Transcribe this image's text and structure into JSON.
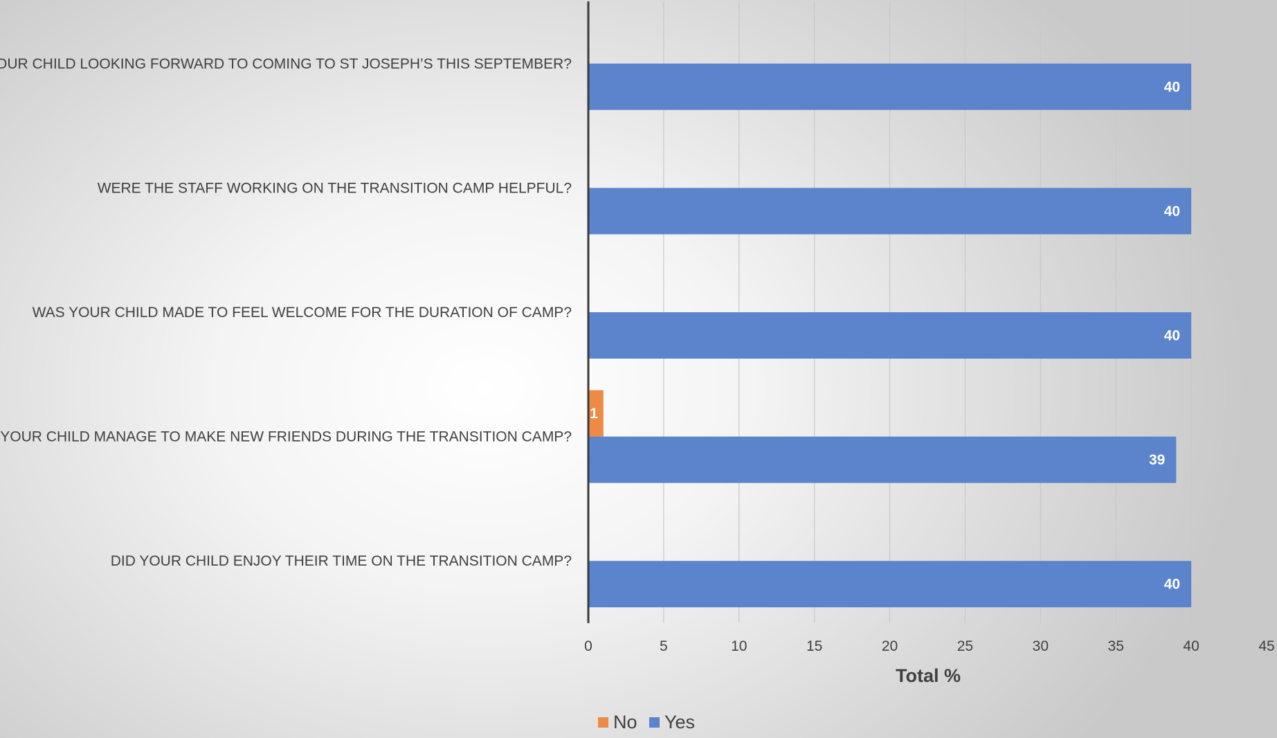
{
  "chart_data": {
    "type": "bar",
    "orientation": "horizontal",
    "categories": [
      "IS YOUR CHILD LOOKING FORWARD TO COMING TO ST JOSEPH’S THIS SEPTEMBER?",
      "WERE THE STAFF WORKING ON THE TRANSITION CAMP HELPFUL?",
      "WAS YOUR CHILD MADE TO FEEL WELCOME FOR THE DURATION OF CAMP?",
      "DID YOUR CHILD MANAGE TO MAKE NEW FRIENDS DURING THE TRANSITION CAMP?",
      "DID YOUR CHILD ENJOY THEIR TIME ON THE TRANSITION CAMP?"
    ],
    "series": [
      {
        "name": "No",
        "color": "#ED8B45",
        "values": [
          0,
          0,
          0,
          1,
          0
        ]
      },
      {
        "name": "Yes",
        "color": "#5B84CC",
        "values": [
          40,
          40,
          40,
          39,
          40
        ]
      }
    ],
    "xlabel": "Total %",
    "xlim": [
      0,
      45
    ],
    "xticks": [
      0,
      5,
      10,
      15,
      20,
      25,
      30,
      35,
      40,
      45
    ],
    "grid": true,
    "legend_position": "bottom"
  }
}
